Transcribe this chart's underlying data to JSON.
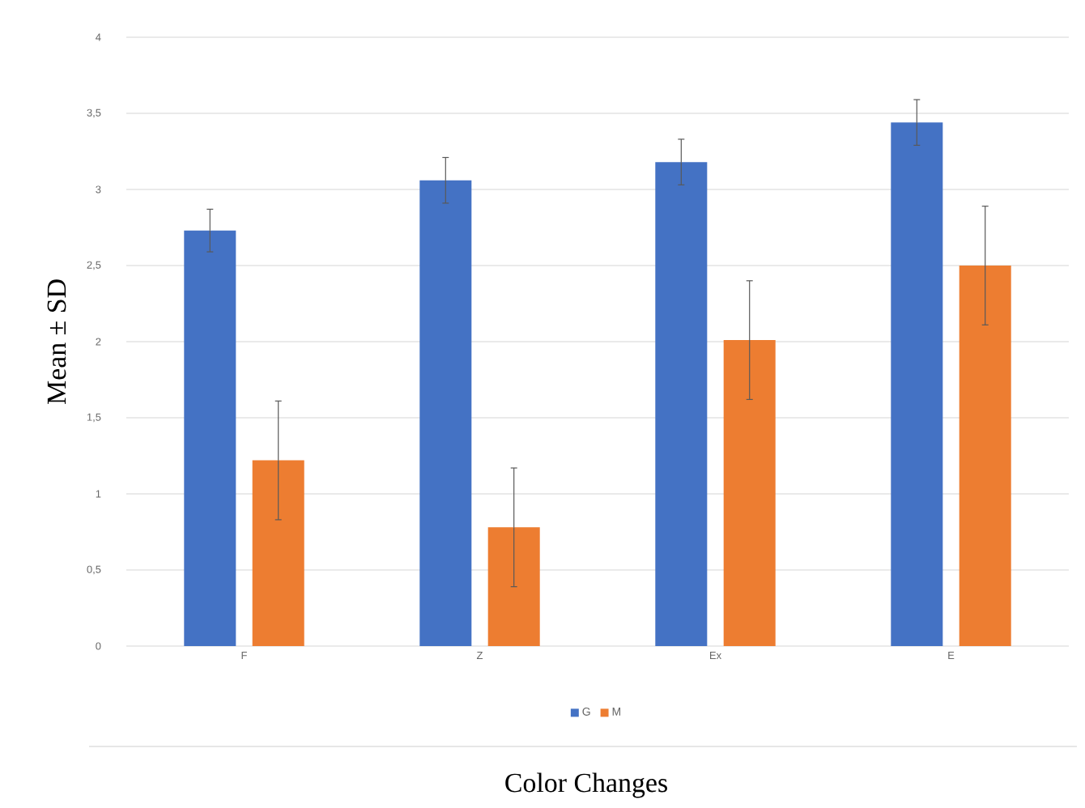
{
  "chart_data": {
    "type": "bar",
    "xlabel": "Color Changes",
    "ylabel": "Mean ± SD",
    "categories": [
      "F",
      "Z",
      "Ex",
      "E"
    ],
    "series": [
      {
        "name": "G",
        "color": "#4472c4",
        "values": [
          2.73,
          3.06,
          3.18,
          3.44
        ],
        "errors": [
          0.14,
          0.15,
          0.15,
          0.15
        ]
      },
      {
        "name": "M",
        "color": "#ed7d31",
        "values": [
          1.22,
          0.78,
          2.01,
          2.5
        ],
        "errors": [
          0.39,
          0.39,
          0.39,
          0.39
        ]
      }
    ],
    "ylim": [
      0,
      4
    ],
    "yticks": [
      0,
      {
        "value": 0.5,
        "label": "0,5"
      },
      1,
      {
        "value": 1.5,
        "label": "1,5"
      },
      2,
      {
        "value": 2.5,
        "label": "2,5"
      },
      3,
      {
        "value": 3.5,
        "label": "3,5"
      },
      4
    ],
    "grid": "y",
    "legend": "bottom"
  }
}
